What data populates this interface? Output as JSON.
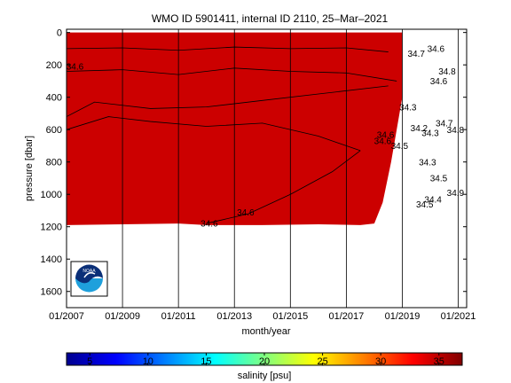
{
  "chart_data": {
    "type": "heatmap",
    "title": "WMO ID 5901411, internal ID 2110, 25–Mar–2021",
    "xlabel": "month/year",
    "ylabel": "pressure [dbar]",
    "x_tick_labels": [
      "01/2007",
      "01/2009",
      "01/2011",
      "01/2013",
      "01/2015",
      "01/2017",
      "01/2019",
      "01/2021"
    ],
    "y_tick_values": [
      0,
      200,
      400,
      600,
      800,
      1000,
      1200,
      1400,
      1600
    ],
    "ylim": [
      1700,
      -20
    ],
    "xlim": [
      2007.0,
      2021.3
    ],
    "y_reversed": true,
    "fill_color": "#cc0000",
    "colorbar": {
      "label": "salinity [psu]",
      "ticks": [
        5,
        10,
        15,
        20,
        25,
        30,
        35
      ],
      "range": [
        3,
        37
      ],
      "colors": [
        "#00008f",
        "#0000ff",
        "#0080ff",
        "#00ffff",
        "#80ff80",
        "#ffff00",
        "#ff8000",
        "#ff0000",
        "#800000"
      ]
    },
    "coverage": {
      "x": [
        2007.0,
        2009.0,
        2011.0,
        2012.0,
        2014.0,
        2016.0,
        2017.5,
        2018.0,
        2018.3,
        2018.6,
        2019.0
      ],
      "bottom": [
        1190,
        1185,
        1180,
        1190,
        1190,
        1185,
        1190,
        1180,
        1050,
        800,
        400
      ]
    },
    "profiles": [
      {
        "x": [
          2007.0,
          2009.0,
          2011.0,
          2013.0,
          2015.0,
          2017.0,
          2018.5
        ],
        "y": [
          100,
          95,
          110,
          90,
          100,
          95,
          120
        ]
      },
      {
        "x": [
          2007.0,
          2009.0,
          2011.0,
          2013.0,
          2015.0,
          2017.0,
          2018.8
        ],
        "y": [
          240,
          230,
          260,
          220,
          240,
          250,
          300
        ]
      },
      {
        "x": [
          2007.0,
          2008.0,
          2010.0,
          2012.0,
          2014.0,
          2016.0,
          2018.5
        ],
        "y": [
          520,
          430,
          470,
          460,
          420,
          380,
          330
        ]
      },
      {
        "x": [
          2007.0,
          2008.5,
          2010.0,
          2012.0,
          2014.0,
          2016.0,
          2017.5
        ],
        "y": [
          600,
          520,
          550,
          580,
          560,
          640,
          730
        ]
      },
      {
        "x": [
          2012.0,
          2013.5,
          2015.0,
          2016.5,
          2017.5
        ],
        "y": [
          1180,
          1120,
          1000,
          860,
          730
        ]
      }
    ],
    "contour_labels": [
      {
        "text": "34.6",
        "x": 2007.3,
        "y": 230
      },
      {
        "text": "34.6",
        "x": 2018.4,
        "y": 650
      },
      {
        "text": "34.6",
        "x": 2018.3,
        "y": 690
      },
      {
        "text": "34.5",
        "x": 2018.9,
        "y": 720
      },
      {
        "text": "34.2",
        "x": 2019.6,
        "y": 610
      },
      {
        "text": "34.3",
        "x": 2020.0,
        "y": 640
      },
      {
        "text": "34.7",
        "x": 2020.5,
        "y": 580
      },
      {
        "text": "34.8",
        "x": 2020.9,
        "y": 620
      },
      {
        "text": "34.3",
        "x": 2019.2,
        "y": 480
      },
      {
        "text": "34.7",
        "x": 2019.5,
        "y": 150
      },
      {
        "text": "34.6",
        "x": 2020.3,
        "y": 320
      },
      {
        "text": "34.6",
        "x": 2020.2,
        "y": 120
      },
      {
        "text": "34.8",
        "x": 2020.6,
        "y": 260
      },
      {
        "text": "34.3",
        "x": 2019.9,
        "y": 820
      },
      {
        "text": "34.5",
        "x": 2020.3,
        "y": 920
      },
      {
        "text": "34.4",
        "x": 2020.1,
        "y": 1050
      },
      {
        "text": "34.5",
        "x": 2019.8,
        "y": 1080
      },
      {
        "text": "34.9",
        "x": 2020.9,
        "y": 1010
      },
      {
        "text": "34.6",
        "x": 2012.1,
        "y": 1200
      },
      {
        "text": "34.6",
        "x": 2013.4,
        "y": 1130
      }
    ]
  }
}
